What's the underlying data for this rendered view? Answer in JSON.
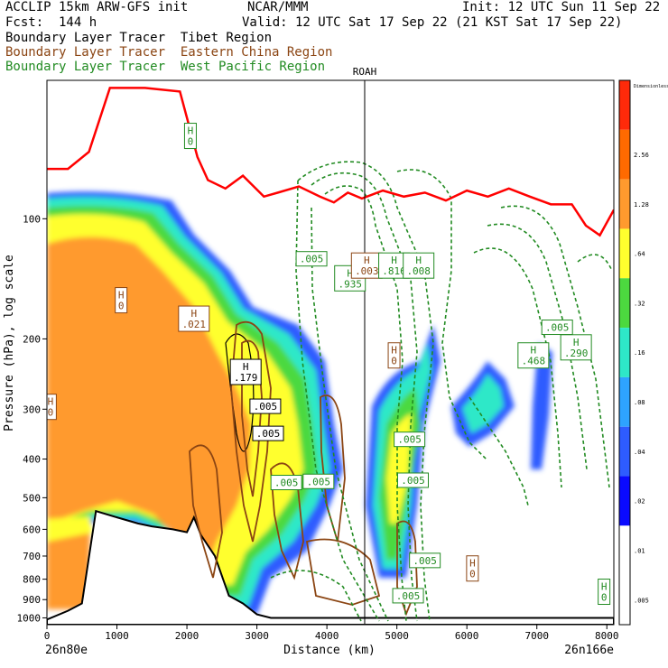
{
  "header": {
    "model": "ACCLIP 15km ARW-GFS init",
    "org": "NCAR/MMM",
    "init": "Init: 12 UTC Sun 11 Sep 22",
    "fcst": "Fcst:  144 h",
    "valid": "Valid: 12 UTC Sat 17 Sep 22 (21 KST Sat 17 Sep 22)",
    "legend": [
      {
        "label": "Boundary Layer Tracer  Tibet Region",
        "color": "#000000"
      },
      {
        "label": "Boundary Layer Tracer  Eastern China Region",
        "color": "#8b4513"
      },
      {
        "label": "Boundary Layer Tracer  West Pacific Region",
        "color": "#228b22"
      }
    ]
  },
  "chart_data": {
    "type": "cross-section",
    "xlabel": "Distance (km)",
    "ylabel": "Pressure (hPa), log scale",
    "x_ticks": [
      0,
      1000,
      2000,
      3000,
      4000,
      5000,
      6000,
      7000,
      8000
    ],
    "y_ticks": [
      100,
      200,
      300,
      400,
      500,
      600,
      700,
      800,
      900,
      1000
    ],
    "xlim": [
      0,
      8100
    ],
    "ylim_hpa": [
      1040,
      45
    ],
    "y_scale": "log",
    "left_end": "26n80e",
    "right_end": "26n166e",
    "station_marker": {
      "label": "ROAH",
      "x_km": 4540
    },
    "colorbar": {
      "labels": [
        "Dimensionless",
        "2.56",
        "1.28",
        ".64",
        ".32",
        ".16",
        ".08",
        ".04",
        ".02",
        ".01",
        ".005"
      ],
      "colors": [
        "#ff2a0a",
        "#ff6a00",
        "#ff9a2e",
        "#ffff2e",
        "#4cd93f",
        "#2ee8c8",
        "#2ea3ff",
        "#2e5cff",
        "#0a0aff",
        "#ffffff",
        "#ffffff"
      ]
    },
    "tropopause_hpa": [
      [
        0,
        75
      ],
      [
        300,
        75
      ],
      [
        600,
        68
      ],
      [
        900,
        47
      ],
      [
        1400,
        47
      ],
      [
        1900,
        48
      ],
      [
        2150,
        70
      ],
      [
        2300,
        80
      ],
      [
        2550,
        84
      ],
      [
        2800,
        78
      ],
      [
        3100,
        88
      ],
      [
        3300,
        86
      ],
      [
        3600,
        83
      ],
      [
        3900,
        88
      ],
      [
        4100,
        91
      ],
      [
        4300,
        86
      ],
      [
        4500,
        89
      ],
      [
        4800,
        85
      ],
      [
        5100,
        88
      ],
      [
        5400,
        86
      ],
      [
        5700,
        90
      ],
      [
        6000,
        85
      ],
      [
        6300,
        88
      ],
      [
        6600,
        84
      ],
      [
        6900,
        88
      ],
      [
        7200,
        92
      ],
      [
        7500,
        92
      ],
      [
        7700,
        104
      ],
      [
        7900,
        110
      ],
      [
        8100,
        95
      ]
    ],
    "terrain_hpa": [
      [
        0,
        1010
      ],
      [
        300,
        960
      ],
      [
        500,
        920
      ],
      [
        700,
        540
      ],
      [
        1000,
        560
      ],
      [
        1300,
        580
      ],
      [
        1500,
        590
      ],
      [
        1800,
        600
      ],
      [
        2000,
        610
      ],
      [
        2100,
        560
      ],
      [
        2200,
        620
      ],
      [
        2400,
        700
      ],
      [
        2600,
        880
      ],
      [
        2800,
        920
      ],
      [
        3000,
        980
      ],
      [
        3200,
        1000
      ],
      [
        8100,
        1000
      ]
    ],
    "labels": [
      {
        "text": "H",
        "value": "0",
        "x_km": 2050,
        "p_hpa": 62,
        "color": "#228b22"
      },
      {
        "text": "H",
        "value": "0",
        "x_km": 1060,
        "p_hpa": 160,
        "color": "#8b4513"
      },
      {
        "text": "H",
        "value": ".021",
        "x_km": 2100,
        "p_hpa": 178,
        "color": "#8b4513"
      },
      {
        "text": "H",
        "value": ".179",
        "x_km": 2840,
        "p_hpa": 242,
        "color": "#000000"
      },
      {
        "text": "H",
        "value": "0",
        "x_km": 50,
        "p_hpa": 296,
        "color": "#8b4513"
      },
      {
        "text": "",
        "value": ".005",
        "x_km": 3120,
        "p_hpa": 295,
        "color": "#000000"
      },
      {
        "text": "",
        "value": ".005",
        "x_km": 3160,
        "p_hpa": 345,
        "color": "#000000"
      },
      {
        "text": "",
        "value": ".005",
        "x_km": 3420,
        "p_hpa": 458,
        "color": "#228b22"
      },
      {
        "text": "",
        "value": ".005",
        "x_km": 3880,
        "p_hpa": 455,
        "color": "#228b22"
      },
      {
        "text": "H",
        "value": ".935",
        "x_km": 4330,
        "p_hpa": 141,
        "color": "#228b22"
      },
      {
        "text": "H",
        "value": ".003",
        "x_km": 4570,
        "p_hpa": 131,
        "color": "#8b4513"
      },
      {
        "text": "H",
        "value": ".816",
        "x_km": 4960,
        "p_hpa": 131,
        "color": "#228b22"
      },
      {
        "text": "H",
        "value": ".008",
        "x_km": 5310,
        "p_hpa": 131,
        "color": "#228b22"
      },
      {
        "text": "",
        "value": ".005",
        "x_km": 3780,
        "p_hpa": 126,
        "color": "#228b22"
      },
      {
        "text": "H",
        "value": "0",
        "x_km": 4960,
        "p_hpa": 220,
        "color": "#8b4513"
      },
      {
        "text": "H",
        "value": ".468",
        "x_km": 6950,
        "p_hpa": 220,
        "color": "#228b22"
      },
      {
        "text": "H",
        "value": ".290",
        "x_km": 7560,
        "p_hpa": 210,
        "color": "#228b22"
      },
      {
        "text": "",
        "value": ".005",
        "x_km": 7290,
        "p_hpa": 187,
        "color": "#228b22"
      },
      {
        "text": "",
        "value": ".005",
        "x_km": 5180,
        "p_hpa": 357,
        "color": "#228b22"
      },
      {
        "text": "",
        "value": ".005",
        "x_km": 5230,
        "p_hpa": 452,
        "color": "#228b22"
      },
      {
        "text": "",
        "value": ".005",
        "x_km": 5400,
        "p_hpa": 718,
        "color": "#228b22"
      },
      {
        "text": "H",
        "value": "0",
        "x_km": 6080,
        "p_hpa": 752,
        "color": "#8b4513"
      },
      {
        "text": "H",
        "value": "0",
        "x_km": 7960,
        "p_hpa": 860,
        "color": "#228b22"
      },
      {
        "text": "",
        "value": ".005",
        "x_km": 5160,
        "p_hpa": 880,
        "color": "#228b22"
      }
    ],
    "station_label": {
      "text": "ROAH"
    }
  }
}
